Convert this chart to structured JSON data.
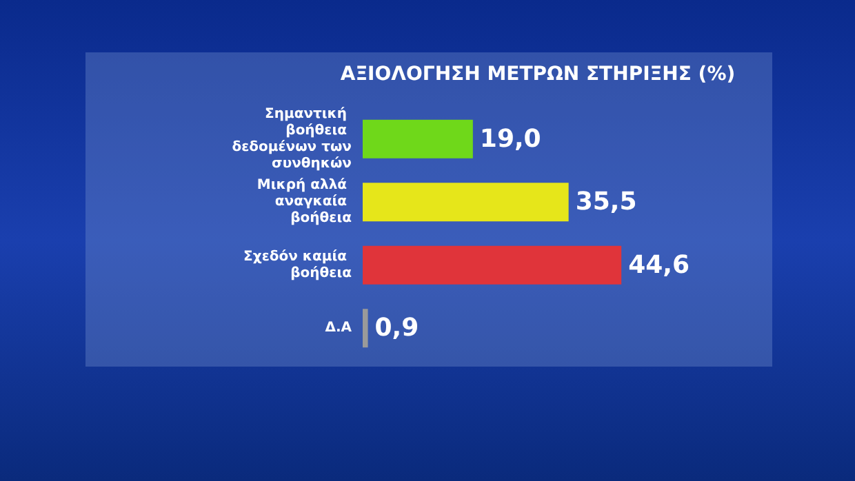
{
  "chart_data": {
    "type": "bar",
    "orientation": "horizontal",
    "title": "ΑΞΙΟΛΟΓΗΣΗ ΜΕΤΡΩΝ ΣΤΗΡΙΞΗΣ (%)",
    "categories": [
      "Σημαντική βοήθεια δεδομένων των συνθηκών",
      "Μικρή αλλά αναγκαία βοήθεια",
      "Σχεδόν καμία βοήθεια",
      "Δ.Α"
    ],
    "values": [
      19.0,
      35.5,
      44.6,
      0.9
    ],
    "colors": [
      "#6fd81a",
      "#e6e61a",
      "#e0343a",
      "#9a9a9a"
    ],
    "value_labels": [
      "19,0",
      "35,5",
      "44,6",
      "0,9"
    ]
  }
}
